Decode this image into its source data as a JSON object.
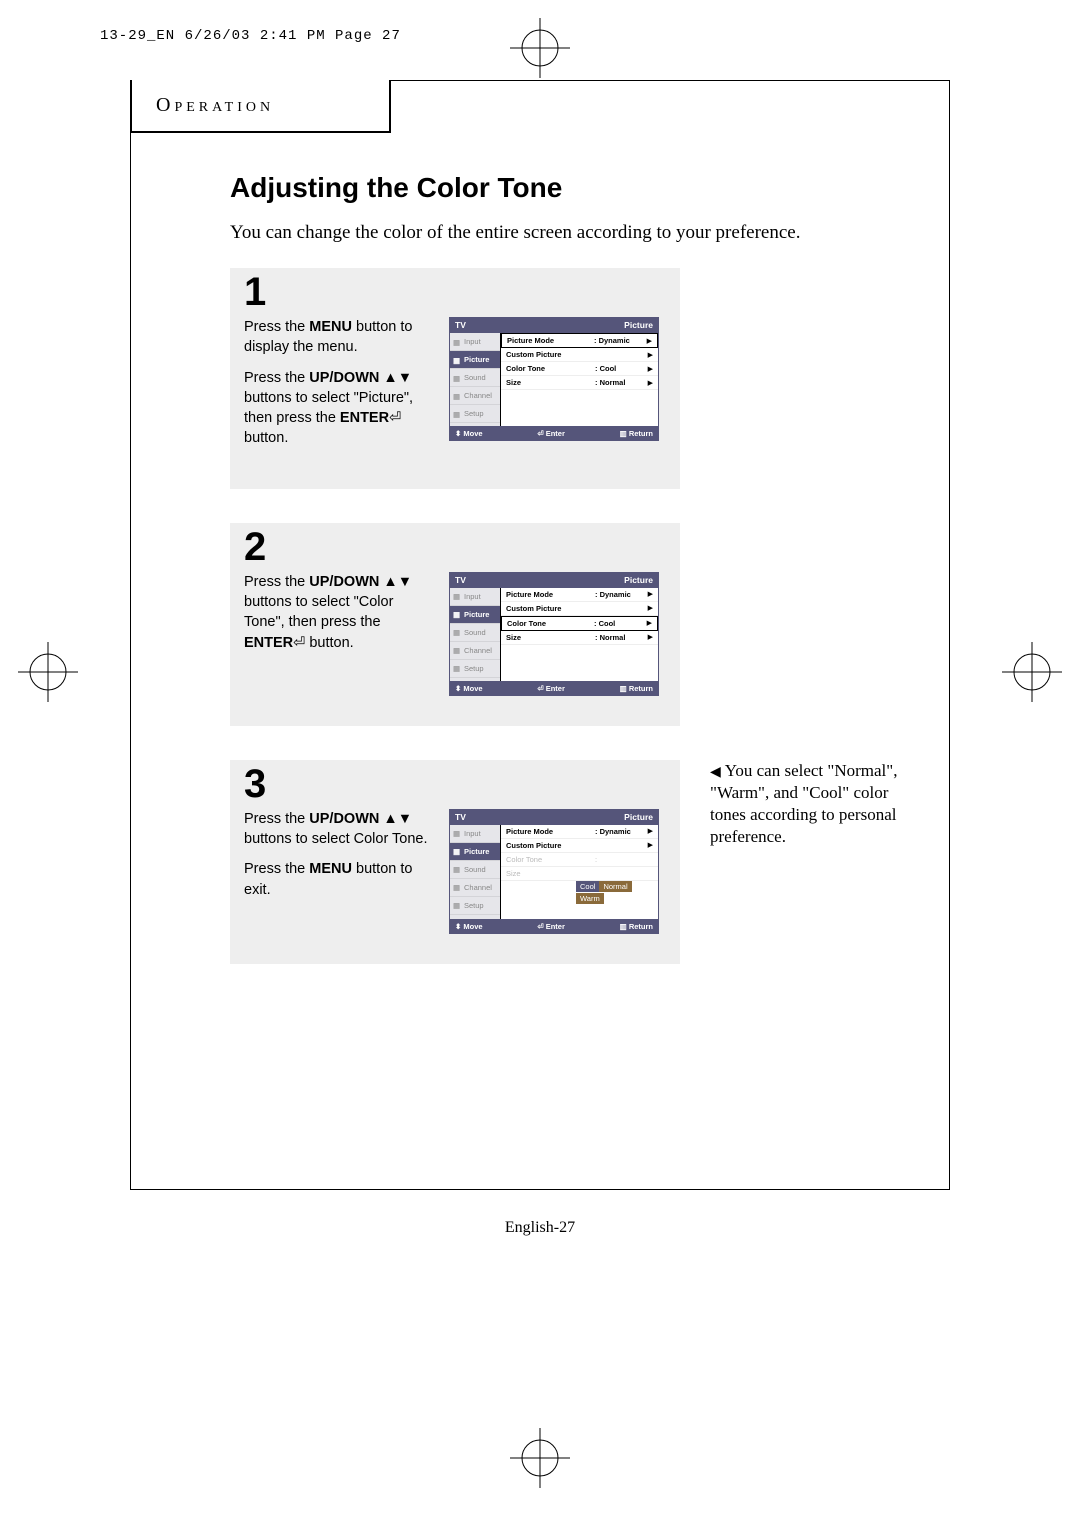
{
  "meta_header": "13-29_EN  6/26/03 2:41 PM  Page 27",
  "section_label": "Operation",
  "title": "Adjusting the Color Tone",
  "intro": "You can change the color of the entire screen according to your preference.",
  "steps": [
    {
      "num": "1",
      "text_html": "Press the <b>MENU</b> button to display the menu.|Press the <b>UP/DOWN</b> ▲▼ buttons to select \"Picture\", then press the <b>ENTER</b>⏎   button.",
      "osd": {
        "title_left": "TV",
        "title_right": "Picture",
        "sidebar": [
          {
            "label": "Input",
            "active": false
          },
          {
            "label": "Picture",
            "active": true
          },
          {
            "label": "Sound",
            "active": false
          },
          {
            "label": "Channel",
            "active": false
          },
          {
            "label": "Setup",
            "active": false
          }
        ],
        "rows": [
          {
            "label": "Picture Mode",
            "value": ": Dynamic",
            "hl": true,
            "faded": false,
            "arrow": "▶"
          },
          {
            "label": "Custom Picture",
            "value": "",
            "hl": false,
            "faded": false,
            "arrow": "▶"
          },
          {
            "label": "Color Tone",
            "value": ": Cool",
            "hl": false,
            "faded": false,
            "arrow": "▶"
          },
          {
            "label": "Size",
            "value": ": Normal",
            "hl": false,
            "faded": false,
            "arrow": "▶"
          }
        ],
        "footer": {
          "move": "Move",
          "enter": "Enter",
          "return": "Return"
        },
        "show_options": false
      }
    },
    {
      "num": "2",
      "text_html": "Press the <b>UP/DOWN</b> ▲▼ buttons to select \"Color Tone\", then press the <b>ENTER</b>⏎ button.",
      "osd": {
        "title_left": "TV",
        "title_right": "Picture",
        "sidebar": [
          {
            "label": "Input",
            "active": false
          },
          {
            "label": "Picture",
            "active": true
          },
          {
            "label": "Sound",
            "active": false
          },
          {
            "label": "Channel",
            "active": false
          },
          {
            "label": "Setup",
            "active": false
          }
        ],
        "rows": [
          {
            "label": "Picture Mode",
            "value": ": Dynamic",
            "hl": false,
            "faded": false,
            "arrow": "▶"
          },
          {
            "label": "Custom Picture",
            "value": "",
            "hl": false,
            "faded": false,
            "arrow": "▶"
          },
          {
            "label": "Color Tone",
            "value": ": Cool",
            "hl": true,
            "faded": false,
            "arrow": "▶"
          },
          {
            "label": "Size",
            "value": ": Normal",
            "hl": false,
            "faded": false,
            "arrow": "▶"
          }
        ],
        "footer": {
          "move": "Move",
          "enter": "Enter",
          "return": "Return"
        },
        "show_options": false
      }
    },
    {
      "num": "3",
      "text_html": "Press the <b>UP/DOWN</b> ▲▼ buttons to select Color Tone.|Press the <b>MENU</b> button to exit.",
      "osd": {
        "title_left": "TV",
        "title_right": "Picture",
        "sidebar": [
          {
            "label": "Input",
            "active": false
          },
          {
            "label": "Picture",
            "active": true
          },
          {
            "label": "Sound",
            "active": false
          },
          {
            "label": "Channel",
            "active": false
          },
          {
            "label": "Setup",
            "active": false
          }
        ],
        "rows": [
          {
            "label": "Picture Mode",
            "value": ": Dynamic",
            "hl": false,
            "faded": false,
            "arrow": "▶"
          },
          {
            "label": "Custom Picture",
            "value": "",
            "hl": false,
            "faded": false,
            "arrow": "▶"
          },
          {
            "label": "Color Tone",
            "value": ":",
            "hl": false,
            "faded": true,
            "arrow": ""
          },
          {
            "label": "Size",
            "value": "",
            "hl": false,
            "faded": true,
            "arrow": ""
          }
        ],
        "options": [
          "Cool",
          "Normal",
          "Warm"
        ],
        "option_selected": 0,
        "footer": {
          "move": "Move",
          "enter": "Enter",
          "return": "Return"
        },
        "show_options": true
      },
      "side_note": "You can select \"Normal\", \"Warm\", and \"Cool\" color tones according to personal preference."
    }
  ],
  "page_num": "English-27",
  "colors": {
    "osd_header": "#55557a",
    "osd_sidebar": "#e6e6ea",
    "step_bg": "#eeeeee",
    "opt_bg": "#8a6a3a"
  }
}
